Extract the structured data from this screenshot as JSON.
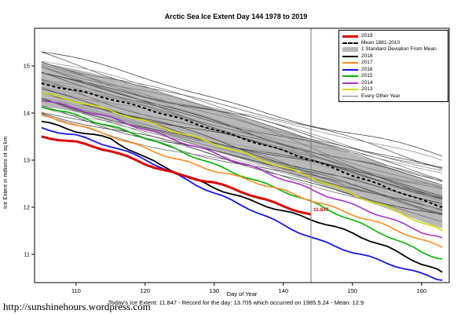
{
  "page": {
    "title": "Arctic Sea Ice Extent Day 144 1978 to 2019",
    "footer_caption": "Today's Ice Extent: 11.847   - Record for the day: 13.705 which occurred on 1985.5.24   - Mean: 12.9",
    "url": "http://sunshinehours.wordpress.com"
  },
  "chart_data": {
    "type": "line",
    "title": "Arctic Sea Ice Extent Day 144 1978 to 2019",
    "xlabel": "Day of Year",
    "ylabel": "Ice Extent in millions of sq km",
    "xlim": [
      104,
      164
    ],
    "ylim": [
      10.4,
      15.8
    ],
    "x_ticks": [
      110,
      120,
      130,
      140,
      150,
      160
    ],
    "y_ticks": [
      11,
      12,
      13,
      14,
      15
    ],
    "grid": false,
    "legend_position": "top-right",
    "vline_x": 144,
    "annotation": {
      "x": 144,
      "y": 11.847,
      "text": "11.847",
      "color": "#cc0000"
    },
    "x": [
      105,
      110,
      115,
      120,
      125,
      130,
      135,
      140,
      145,
      150,
      155,
      160,
      163
    ],
    "std_band": {
      "label": "1 Standard Deviation From Mean",
      "halfwidth": 0.45,
      "color": "#b8b8b8"
    },
    "mean_series": {
      "name": "Mean 1981-2010",
      "color": "#000000",
      "width": 2,
      "dash": "4 3",
      "values": [
        14.62,
        14.48,
        14.3,
        14.1,
        13.88,
        13.65,
        13.42,
        13.2,
        12.95,
        12.68,
        12.42,
        12.15,
        12.0
      ]
    },
    "series": [
      {
        "name": "2013",
        "color": "#d8d800",
        "width": 1.6,
        "values": [
          14.42,
          14.25,
          14.05,
          13.82,
          13.58,
          13.35,
          13.1,
          12.85,
          12.58,
          12.28,
          12.0,
          11.68,
          11.5
        ]
      },
      {
        "name": "2014",
        "color": "#a832c8",
        "width": 1.6,
        "values": [
          14.28,
          14.1,
          13.9,
          13.65,
          13.4,
          13.15,
          12.88,
          12.6,
          12.32,
          12.05,
          11.78,
          11.48,
          11.35
        ]
      },
      {
        "name": "2015",
        "color": "#00b400",
        "width": 1.6,
        "values": [
          14.15,
          13.95,
          13.72,
          13.48,
          13.2,
          12.9,
          12.62,
          12.35,
          12.05,
          11.72,
          11.4,
          11.05,
          10.9
        ]
      },
      {
        "name": "2016",
        "color": "#1414e6",
        "width": 1.8,
        "values": [
          13.68,
          13.52,
          13.3,
          13.02,
          12.65,
          12.3,
          11.98,
          11.62,
          11.3,
          11.05,
          10.82,
          10.58,
          10.45
        ]
      },
      {
        "name": "2017",
        "color": "#ff8c1e",
        "width": 1.6,
        "values": [
          13.95,
          13.75,
          13.52,
          13.25,
          13.0,
          12.78,
          12.58,
          12.35,
          12.1,
          11.85,
          11.6,
          11.3,
          11.15
        ]
      },
      {
        "name": "2018",
        "color": "#000000",
        "width": 1.8,
        "values": [
          13.82,
          13.62,
          13.45,
          13.05,
          12.72,
          12.42,
          12.15,
          11.92,
          11.7,
          11.45,
          11.15,
          10.8,
          10.62
        ]
      },
      {
        "name": "2019",
        "color": "#dd0000",
        "width": 3,
        "x": [
          105,
          110,
          115,
          120,
          125,
          130,
          135,
          140,
          144
        ],
        "values": [
          13.5,
          13.38,
          13.2,
          12.92,
          12.68,
          12.52,
          12.28,
          12.02,
          11.847
        ]
      }
    ],
    "other_years": {
      "name": "Every Other Year",
      "color_cycle": [
        "#2a2a2a",
        "#4a4a4a",
        "#6a6a6a",
        "#8a8a8a",
        "#5a5a5a",
        "#7a7a7a",
        "#9a9a9a",
        "#3a3a3a"
      ],
      "lines_start_end": [
        [
          15.3,
          13.05
        ],
        [
          15.22,
          12.9
        ],
        [
          15.15,
          12.8
        ],
        [
          15.1,
          12.95
        ],
        [
          15.05,
          12.65
        ],
        [
          15.0,
          12.75
        ],
        [
          14.95,
          12.55
        ],
        [
          14.9,
          12.85
        ],
        [
          14.85,
          12.45
        ],
        [
          14.8,
          12.6
        ],
        [
          14.75,
          12.35
        ],
        [
          14.7,
          12.5
        ],
        [
          14.65,
          12.25
        ],
        [
          14.6,
          12.4
        ],
        [
          14.55,
          12.15
        ],
        [
          14.5,
          12.3
        ],
        [
          14.45,
          12.05
        ],
        [
          14.4,
          12.2
        ],
        [
          14.35,
          11.95
        ],
        [
          14.3,
          12.1
        ],
        [
          14.25,
          11.9
        ],
        [
          14.2,
          12.0
        ],
        [
          14.15,
          11.85
        ],
        [
          14.1,
          11.95
        ],
        [
          14.05,
          11.8
        ],
        [
          14.0,
          11.9
        ],
        [
          13.95,
          11.75
        ],
        [
          14.7,
          12.7
        ],
        [
          14.95,
          12.2
        ],
        [
          15.1,
          12.4
        ],
        [
          14.4,
          11.9
        ],
        [
          14.25,
          12.25
        ]
      ]
    },
    "legend": {
      "items": [
        {
          "label": "2019",
          "type": "line",
          "color": "#dd0000",
          "h": 3
        },
        {
          "label": "Mean 1981-2010",
          "type": "dash",
          "color": "#000000",
          "h": 2
        },
        {
          "label": "1 Standard Deviation From Mean",
          "type": "band",
          "color": "#b8b8b8",
          "h": 6
        },
        {
          "label": "2018",
          "type": "line",
          "color": "#000000",
          "h": 2
        },
        {
          "label": "2017",
          "type": "line",
          "color": "#ff8c1e",
          "h": 2
        },
        {
          "label": "2016",
          "type": "line",
          "color": "#1414e6",
          "h": 2
        },
        {
          "label": "2015",
          "type": "line",
          "color": "#00b400",
          "h": 2
        },
        {
          "label": "2014",
          "type": "line",
          "color": "#a832c8",
          "h": 2
        },
        {
          "label": "2013",
          "type": "line",
          "color": "#d8d800",
          "h": 2
        },
        {
          "label": "Every Other Year",
          "type": "line",
          "color": "#777777",
          "h": 1
        }
      ]
    }
  }
}
